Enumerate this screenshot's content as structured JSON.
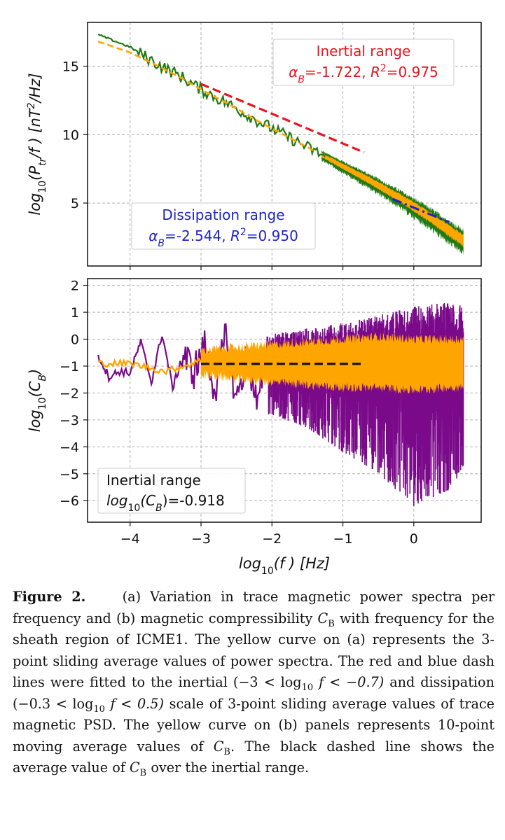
{
  "chart_data": [
    {
      "type": "line",
      "panel": "a",
      "title": "",
      "xlabel": "",
      "ylabel": "log10(Ptr/f) [nT²/Hz]",
      "xlim": [
        -4.6,
        0.95
      ],
      "ylim": [
        0.4,
        18.2
      ],
      "xticks": [
        -4,
        -3,
        -2,
        -1,
        0
      ],
      "yticks": [
        5,
        10,
        15
      ],
      "grid": true,
      "series": [
        {
          "name": "Trace magnetic PSD",
          "color": "#1e7a12",
          "style": "solid",
          "x": [
            -4.45,
            -4.0,
            -3.6,
            -3.3,
            -3.0,
            -2.6,
            -2.2,
            -1.8,
            -1.4,
            -1.0,
            -0.6,
            -0.2,
            0.2,
            0.5,
            0.7
          ],
          "y": [
            17.3,
            16.4,
            15.1,
            14.3,
            13.3,
            12.2,
            11.0,
            9.9,
            8.8,
            7.7,
            6.6,
            5.4,
            4.1,
            3.0,
            2.3
          ]
        },
        {
          "name": "3-point sliding average",
          "color": "#ffa500",
          "style": "dashed",
          "x": [
            -4.45,
            -4.0,
            -3.6,
            -3.3,
            -3.0,
            -2.6,
            -2.2,
            -1.8,
            -1.4,
            -1.0,
            -0.6,
            -0.2,
            0.2,
            0.5,
            0.7
          ],
          "y": [
            16.8,
            16.0,
            15.0,
            14.2,
            13.3,
            12.2,
            11.0,
            9.9,
            8.8,
            7.7,
            6.6,
            5.4,
            4.1,
            3.0,
            2.3
          ]
        },
        {
          "name": "Inertial fit",
          "color": "#e8141e",
          "style": "dashed",
          "x": [
            -3.0,
            -0.7
          ],
          "y": [
            13.7,
            8.7
          ]
        },
        {
          "name": "Dissipation fit",
          "color": "#1f24c7",
          "style": "dashdot",
          "x": [
            -0.3,
            0.5
          ],
          "y": [
            5.3,
            3.6
          ]
        }
      ],
      "annotations": [
        {
          "title": "Inertial range",
          "fit": "αB=-1.722, R²=0.975",
          "color": "#e8141e",
          "position": "top-right"
        },
        {
          "title": "Dissipation range",
          "fit": "αB=-2.544, R²=0.950",
          "color": "#1f24c7",
          "position": "bottom-left"
        }
      ]
    },
    {
      "type": "line",
      "panel": "b",
      "title": "",
      "xlabel": "log10(f ) [Hz]",
      "ylabel": "log10(CB)",
      "xlim": [
        -4.6,
        0.95
      ],
      "ylim": [
        -6.8,
        2.25
      ],
      "xticks": [
        -4,
        -3,
        -2,
        -1,
        0
      ],
      "yticks": [
        2,
        1,
        0,
        -1,
        -2,
        -3,
        -4,
        -5,
        -6
      ],
      "grid": true,
      "series": [
        {
          "name": "CB",
          "color": "#7a0a8a",
          "style": "solid",
          "x": [
            -4.45,
            -4.3,
            -4.15,
            -4.0,
            -3.85,
            -3.7,
            -3.55,
            -3.4,
            -3.25,
            -3.1,
            -2.95,
            -2.8,
            -2.65,
            -2.5,
            -2.35,
            -2.2,
            -2.05
          ],
          "y": [
            -0.6,
            -1.4,
            -1.2,
            -1.25,
            -0.1,
            -1.6,
            0.2,
            -1.8,
            -0.6,
            -1.2,
            -0.3,
            -1.9,
            0.1,
            -2.3,
            -0.5,
            -2.6,
            0.0
          ]
        },
        {
          "name": "CB envelope",
          "color": "#7a0a8a",
          "style": "band",
          "x": [
            -2.0,
            -1.5,
            -1.0,
            -0.5,
            0.0,
            0.5,
            0.7
          ],
          "upper": [
            0.2,
            0.4,
            0.6,
            0.9,
            1.2,
            1.4,
            1.3
          ],
          "lower": [
            -2.8,
            -3.3,
            -4.2,
            -5.0,
            -6.2,
            -5.6,
            -4.8
          ]
        },
        {
          "name": "10-point moving average",
          "color": "#ffa500",
          "style": "solid",
          "x": [
            -4.45,
            -4.0,
            -3.5,
            -3.0,
            -2.5,
            -2.0,
            -1.5,
            -1.0,
            -0.5,
            0.0,
            0.5,
            0.7
          ],
          "y": [
            -0.9,
            -0.9,
            -1.2,
            -0.8,
            -0.9,
            -0.9,
            -0.9,
            -0.9,
            -0.9,
            -0.9,
            -0.9,
            -0.9
          ],
          "band_upper": [
            null,
            null,
            null,
            -0.4,
            -0.3,
            -0.2,
            -0.1,
            0.0,
            0.1,
            0.0,
            0.0,
            0.0
          ],
          "band_lower": [
            null,
            null,
            null,
            -1.3,
            -1.5,
            -1.6,
            -1.7,
            -1.8,
            -1.8,
            -1.9,
            -1.8,
            -1.8
          ]
        },
        {
          "name": "Average CB over inertial range",
          "color": "#111111",
          "style": "dashed",
          "x": [
            -3.0,
            -0.7
          ],
          "y": [
            -0.918,
            -0.918
          ]
        }
      ],
      "annotations": [
        {
          "title": "Inertial range",
          "fit": "log10(CB)=-0.918",
          "color": "#111111",
          "position": "bottom-left"
        }
      ]
    }
  ],
  "axis_text": {
    "a_ylabel": {
      "pre": "log",
      "sub1": "10",
      "mid": "(P",
      "sub2": "tr",
      "post": "/f ) [nT",
      "sup": "2",
      "end": "/Hz]"
    },
    "b_ylabel": {
      "pre": "log",
      "sub1": "10",
      "mid": "(C",
      "sub2": "B",
      "end": ")"
    },
    "xlabel": {
      "pre": "log",
      "sub1": "10",
      "mid": "(f ) [Hz]"
    },
    "ann_inertial_a": {
      "title": "Inertial range",
      "a": "α",
      "a_sub": "B",
      "eq": "=-1.722, ",
      "r": "R",
      "r_sup": "2",
      "rest": "=0.975"
    },
    "ann_dissipation_a": {
      "title": "Dissipation range",
      "a": "α",
      "a_sub": "B",
      "eq": "=-2.544, ",
      "r": "R",
      "r_sup": "2",
      "rest": "=0.950"
    },
    "ann_inertial_b": {
      "title": "Inertial range",
      "pre": "log",
      "sub1": "10",
      "mid": "(C",
      "sub2": "B",
      "rest": ")=-0.918"
    }
  },
  "caption": {
    "label": "Figure 2.",
    "s1": "(a) Variation in trace magnetic power spectra per frequency and (b) magnetic compressibility",
    "cb1": "C",
    "cb1_sub": "B",
    "s2": "with frequency for the sheath region of ICME1. The yellow curve on (a) represents the 3-point sliding average values of power spectra. The red and blue dash lines were fitted to the inertial",
    "range1": "(−3 < log",
    "range1_sub": "10",
    "range1_end": "f < −0.7)",
    "s3": "and dissipation",
    "range2": "(−0.3 < log",
    "range2_sub": "10",
    "range2_end": "f < 0.5)",
    "s4": "scale of 3-point sliding average values of trace magnetic PSD. The yellow curve on (b) panels represents 10-point moving average values of",
    "cb2": "C",
    "cb2_sub": "B",
    "s5": ". The black dashed line shows the average value of",
    "cb3": "C",
    "cb3_sub": "B",
    "s6": "over the inertial range."
  }
}
